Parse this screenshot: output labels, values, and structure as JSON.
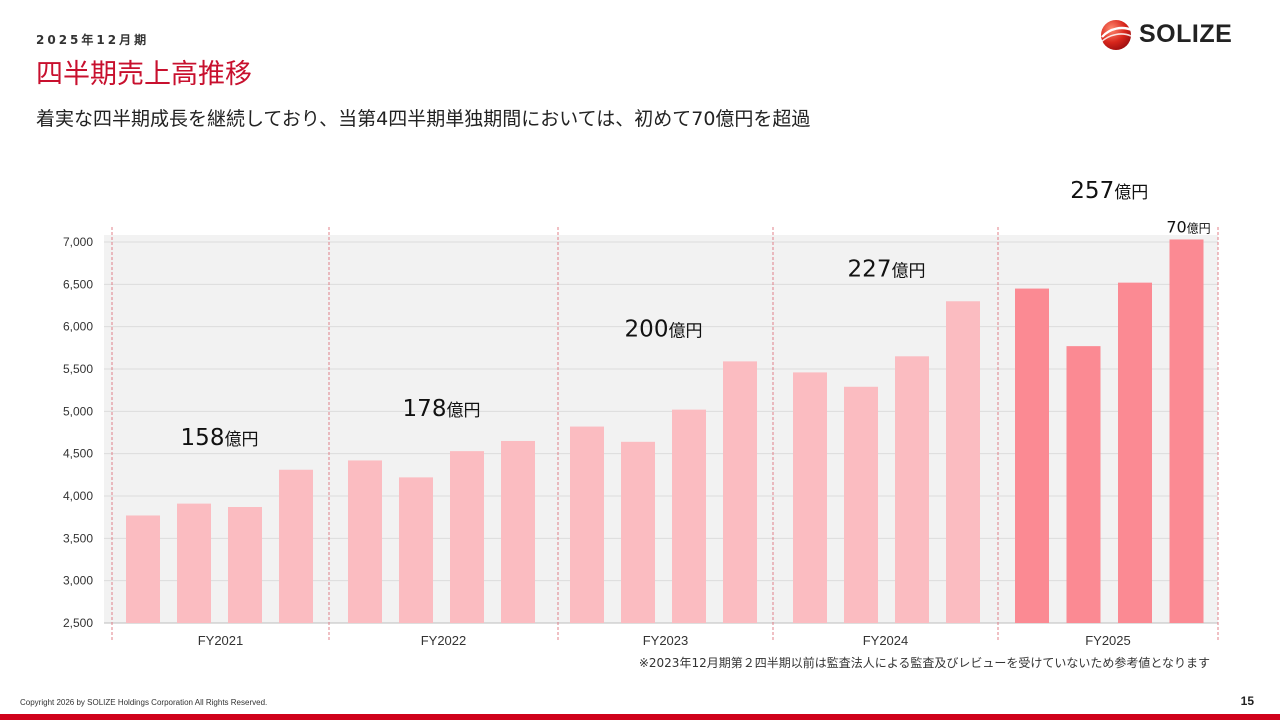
{
  "header": {
    "period": "2025年12月期",
    "title": "四半期売上高推移",
    "subtitle": "着実な四半期成長を継続しており、当第4四半期単独期間においては、初めて70億円を超過"
  },
  "logo": {
    "text": "SOLIZE",
    "icon": "solize-sphere-logo"
  },
  "colors": {
    "accent": "#c8102e",
    "bar_past": "#fbbcc1",
    "bar_current": "#fb8a93",
    "divider": "#e0808a",
    "plot_bg": "#f2f2f2",
    "bottom_bar": "#d0021b"
  },
  "chart_data": {
    "type": "bar",
    "ylim": [
      2500,
      7000
    ],
    "yticks": [
      "2,500",
      "3,000",
      "3,500",
      "4,000",
      "4,500",
      "5,000",
      "5,500",
      "6,000",
      "6,500",
      "7,000"
    ],
    "grid": true,
    "groups": [
      {
        "label": "FY2021",
        "values": [
          3770,
          3910,
          3870,
          4310
        ],
        "total_label": "158",
        "unit": "億円"
      },
      {
        "label": "FY2022",
        "values": [
          4420,
          4220,
          4530,
          4650
        ],
        "total_label": "178",
        "unit": "億円"
      },
      {
        "label": "FY2023",
        "values": [
          4820,
          4640,
          5020,
          5590
        ],
        "total_label": "200",
        "unit": "億円"
      },
      {
        "label": "FY2024",
        "values": [
          5460,
          5290,
          5650,
          6300
        ],
        "total_label": "227",
        "unit": "億円"
      },
      {
        "label": "FY2025",
        "values": [
          6450,
          5770,
          6520,
          7030
        ],
        "total_label": "257",
        "unit": "億円",
        "highlight": true
      }
    ],
    "annotations": [
      {
        "text": "70",
        "unit": "億円",
        "target": "FY2025-Q4"
      }
    ]
  },
  "footnote": "※2023年12月期第２四半期以前は監査法人による監査及びレビューを受けていないため参考値となります",
  "footer": {
    "copyright": "Copyright 2026 by SOLIZE Holdings Corporation All Rights Reserved.",
    "page": "15"
  }
}
